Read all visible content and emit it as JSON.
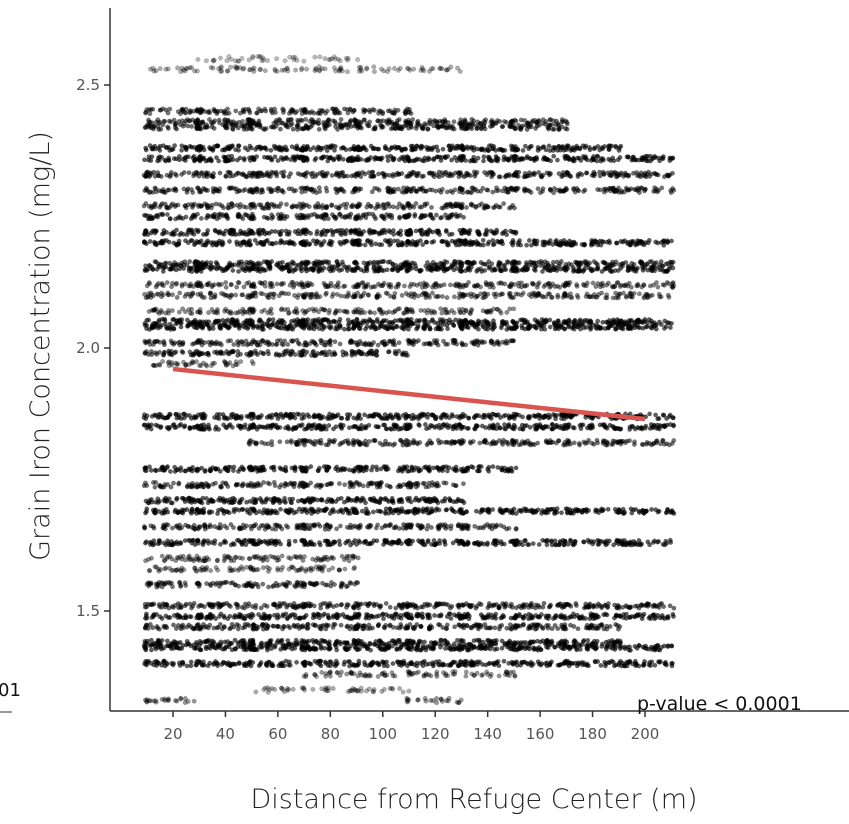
{
  "chart_data": {
    "type": "scatter",
    "xlabel": "Distance from Refuge Center (m)",
    "ylabel": "Grain Iron Concentration (mg/L)",
    "x_ticks": [
      "20",
      "40",
      "60",
      "80",
      "100",
      "120",
      "140",
      "160",
      "180",
      "200"
    ],
    "y_ticks": [
      "1.5",
      "2.0",
      "2.5"
    ],
    "xlim": [
      8,
      205
    ],
    "ylim": [
      1.3,
      2.64
    ],
    "grid": false,
    "annotation": "p-value < 0.0001",
    "cropped_left_text": "01",
    "x_levels": [
      20,
      40,
      60,
      80,
      100,
      120,
      140,
      160,
      180,
      200
    ],
    "point_bands": [
      {
        "y": 2.53,
        "x_levels": [
          20,
          40,
          60,
          80,
          100,
          120
        ],
        "weight": 0.3
      },
      {
        "y": 2.55,
        "x_levels": [
          40,
          60,
          80
        ],
        "weight": 0.2
      },
      {
        "y": 2.45,
        "x_levels": [
          20,
          40,
          60,
          80,
          100
        ],
        "weight": 0.8
      },
      {
        "y": 2.43,
        "x_levels": [
          20,
          40,
          60,
          80,
          100,
          120,
          140,
          160
        ],
        "weight": 0.8
      },
      {
        "y": 2.42,
        "x_levels": [
          20,
          40,
          60,
          80,
          100,
          120,
          140,
          160
        ],
        "weight": 0.9
      },
      {
        "y": 2.38,
        "x_levels": [
          20,
          40,
          60,
          80,
          100,
          120,
          140,
          160,
          180
        ],
        "weight": 1.0
      },
      {
        "y": 2.36,
        "x_levels": [
          20,
          40,
          60,
          80,
          100,
          120,
          140,
          160,
          180,
          200
        ],
        "weight": 1.0
      },
      {
        "y": 2.33,
        "x_levels": [
          20,
          40,
          60,
          80,
          100,
          120,
          140,
          160,
          180,
          200
        ],
        "weight": 0.9
      },
      {
        "y": 2.3,
        "x_levels": [
          20,
          40,
          60,
          80,
          100,
          120,
          140,
          160,
          180,
          200
        ],
        "weight": 0.8
      },
      {
        "y": 2.27,
        "x_levels": [
          20,
          40,
          60,
          80,
          100,
          120,
          140
        ],
        "weight": 0.8
      },
      {
        "y": 2.25,
        "x_levels": [
          20,
          40,
          60,
          80,
          100,
          120
        ],
        "weight": 0.9
      },
      {
        "y": 2.22,
        "x_levels": [
          20,
          40,
          60,
          80,
          100,
          120,
          140
        ],
        "weight": 1.0
      },
      {
        "y": 2.2,
        "x_levels": [
          20,
          40,
          60,
          80,
          100,
          120,
          140,
          160,
          180,
          200
        ],
        "weight": 1.0
      },
      {
        "y": 2.16,
        "x_levels": [
          20,
          40,
          60,
          80,
          100,
          120,
          140,
          160,
          180,
          200
        ],
        "weight": 0.9
      },
      {
        "y": 2.15,
        "x_levels": [
          20,
          40,
          60,
          80,
          100,
          120,
          140,
          160,
          180,
          200
        ],
        "weight": 1.0
      },
      {
        "y": 2.12,
        "x_levels": [
          20,
          40,
          60,
          80,
          100,
          120,
          140,
          160,
          180,
          200
        ],
        "weight": 0.7
      },
      {
        "y": 2.1,
        "x_levels": [
          20,
          40,
          60,
          80,
          100,
          120,
          140,
          160,
          180,
          200
        ],
        "weight": 0.7
      },
      {
        "y": 2.07,
        "x_levels": [
          20,
          40,
          60,
          80,
          100,
          120,
          140
        ],
        "weight": 0.6
      },
      {
        "y": 2.05,
        "x_levels": [
          20,
          40,
          60,
          80,
          100,
          120,
          140,
          160,
          180,
          200
        ],
        "weight": 1.0
      },
      {
        "y": 2.04,
        "x_levels": [
          20,
          40,
          60,
          80,
          100,
          120,
          140,
          160,
          180,
          200
        ],
        "weight": 1.0
      },
      {
        "y": 2.01,
        "x_levels": [
          20,
          40,
          60,
          80,
          100,
          120,
          140
        ],
        "weight": 0.8
      },
      {
        "y": 1.99,
        "x_levels": [
          20,
          40,
          60,
          80,
          100
        ],
        "weight": 0.9
      },
      {
        "y": 1.97,
        "x_levels": [
          20,
          40
        ],
        "weight": 0.5
      },
      {
        "y": 1.87,
        "x_levels": [
          20,
          40,
          60,
          80,
          100,
          120,
          140,
          160,
          180,
          200
        ],
        "weight": 1.0
      },
      {
        "y": 1.85,
        "x_levels": [
          20,
          40,
          60,
          80,
          100,
          120,
          140,
          160,
          180,
          200
        ],
        "weight": 1.0
      },
      {
        "y": 1.82,
        "x_levels": [
          60,
          80,
          100,
          120,
          140,
          160,
          180,
          200
        ],
        "weight": 0.8
      },
      {
        "y": 1.77,
        "x_levels": [
          20,
          40,
          60,
          80,
          100,
          120,
          140
        ],
        "weight": 1.0
      },
      {
        "y": 1.74,
        "x_levels": [
          20,
          40,
          60,
          80,
          100,
          120
        ],
        "weight": 0.8
      },
      {
        "y": 1.71,
        "x_levels": [
          20,
          40,
          60,
          80,
          100,
          120
        ],
        "weight": 1.0
      },
      {
        "y": 1.69,
        "x_levels": [
          20,
          40,
          60,
          80,
          100,
          120,
          140,
          160,
          180,
          200
        ],
        "weight": 1.0
      },
      {
        "y": 1.66,
        "x_levels": [
          20,
          40,
          60,
          80,
          100,
          120,
          140
        ],
        "weight": 0.8
      },
      {
        "y": 1.63,
        "x_levels": [
          20,
          40,
          60,
          80,
          100,
          120,
          140,
          160,
          180,
          200
        ],
        "weight": 1.0
      },
      {
        "y": 1.6,
        "x_levels": [
          20,
          40,
          60,
          80
        ],
        "weight": 0.6
      },
      {
        "y": 1.58,
        "x_levels": [
          20,
          40,
          60,
          80
        ],
        "weight": 0.5
      },
      {
        "y": 1.55,
        "x_levels": [
          20,
          40,
          60,
          80
        ],
        "weight": 0.8
      },
      {
        "y": 1.51,
        "x_levels": [
          20,
          40,
          60,
          80,
          100,
          120,
          140,
          160,
          180,
          200
        ],
        "weight": 0.9
      },
      {
        "y": 1.49,
        "x_levels": [
          20,
          40,
          60,
          80,
          100,
          120,
          140,
          160,
          180,
          200
        ],
        "weight": 1.0
      },
      {
        "y": 1.47,
        "x_levels": [
          20,
          40,
          60,
          80,
          100,
          120,
          140,
          160,
          180
        ],
        "weight": 0.9
      },
      {
        "y": 1.44,
        "x_levels": [
          20,
          40,
          60,
          80,
          100,
          120,
          140,
          160,
          180
        ],
        "weight": 1.0
      },
      {
        "y": 1.43,
        "x_levels": [
          20,
          40,
          60,
          80,
          100,
          120,
          140,
          160,
          180,
          200
        ],
        "weight": 1.0
      },
      {
        "y": 1.4,
        "x_levels": [
          20,
          40,
          60,
          80,
          100,
          120,
          140,
          160,
          180,
          200
        ],
        "weight": 1.0
      },
      {
        "y": 1.38,
        "x_levels": [
          80,
          100,
          120,
          140
        ],
        "weight": 0.5
      },
      {
        "y": 1.35,
        "x_levels": [
          60,
          80,
          100
        ],
        "weight": 0.3
      },
      {
        "y": 1.33,
        "x_levels": [
          20,
          120
        ],
        "weight": 0.5
      }
    ],
    "trend_line": {
      "x": [
        20,
        200
      ],
      "y": [
        1.96,
        1.865
      ],
      "color": "#d9534f"
    }
  }
}
